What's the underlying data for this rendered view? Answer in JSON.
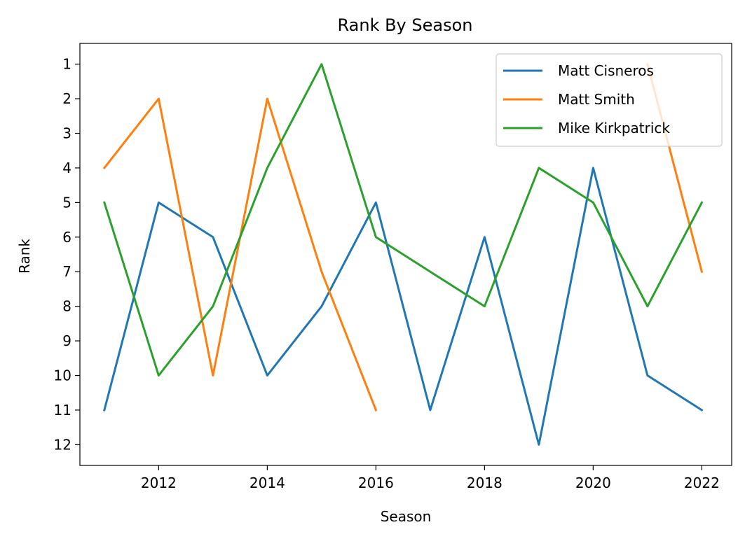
{
  "chart_data": {
    "type": "line",
    "title": "Rank By Season",
    "xlabel": "Season",
    "ylabel": "Rank",
    "xlim": [
      2010.55,
      2022.55
    ],
    "ylim": [
      12.6,
      0.4
    ],
    "y_inverted": true,
    "grid": false,
    "legend_position": "top-right",
    "xticks": [
      2012,
      2014,
      2016,
      2018,
      2020,
      2022
    ],
    "yticks": [
      1,
      2,
      3,
      4,
      5,
      6,
      7,
      8,
      9,
      10,
      11,
      12
    ],
    "series": [
      {
        "name": "Matt Cisneros",
        "color": "#1f77b4",
        "points": [
          [
            2011,
            11
          ],
          [
            2012,
            5
          ],
          [
            2013,
            6
          ],
          [
            2014,
            10
          ],
          [
            2015,
            8
          ],
          [
            2016,
            5
          ],
          [
            2017,
            11
          ],
          [
            2018,
            6
          ],
          [
            2019,
            12
          ],
          [
            2020,
            4
          ],
          [
            2021,
            10
          ],
          [
            2022,
            11
          ]
        ]
      },
      {
        "name": "Matt Smith",
        "color": "#ff7f0e",
        "points": [
          [
            2011,
            4
          ],
          [
            2012,
            2
          ],
          [
            2013,
            10
          ],
          [
            2014,
            2
          ],
          [
            2015,
            7
          ],
          [
            2016,
            11
          ]
        ],
        "points2": [
          [
            2021,
            1
          ],
          [
            2022,
            7
          ]
        ]
      },
      {
        "name": "Mike Kirkpatrick",
        "color": "#2ca02c",
        "points": [
          [
            2011,
            5
          ],
          [
            2012,
            10
          ],
          [
            2013,
            8
          ],
          [
            2014,
            4
          ],
          [
            2015,
            1
          ],
          [
            2016,
            6
          ],
          [
            2017,
            7
          ],
          [
            2018,
            8
          ],
          [
            2019,
            4
          ],
          [
            2020,
            5
          ],
          [
            2021,
            8
          ],
          [
            2022,
            5
          ]
        ]
      }
    ]
  }
}
